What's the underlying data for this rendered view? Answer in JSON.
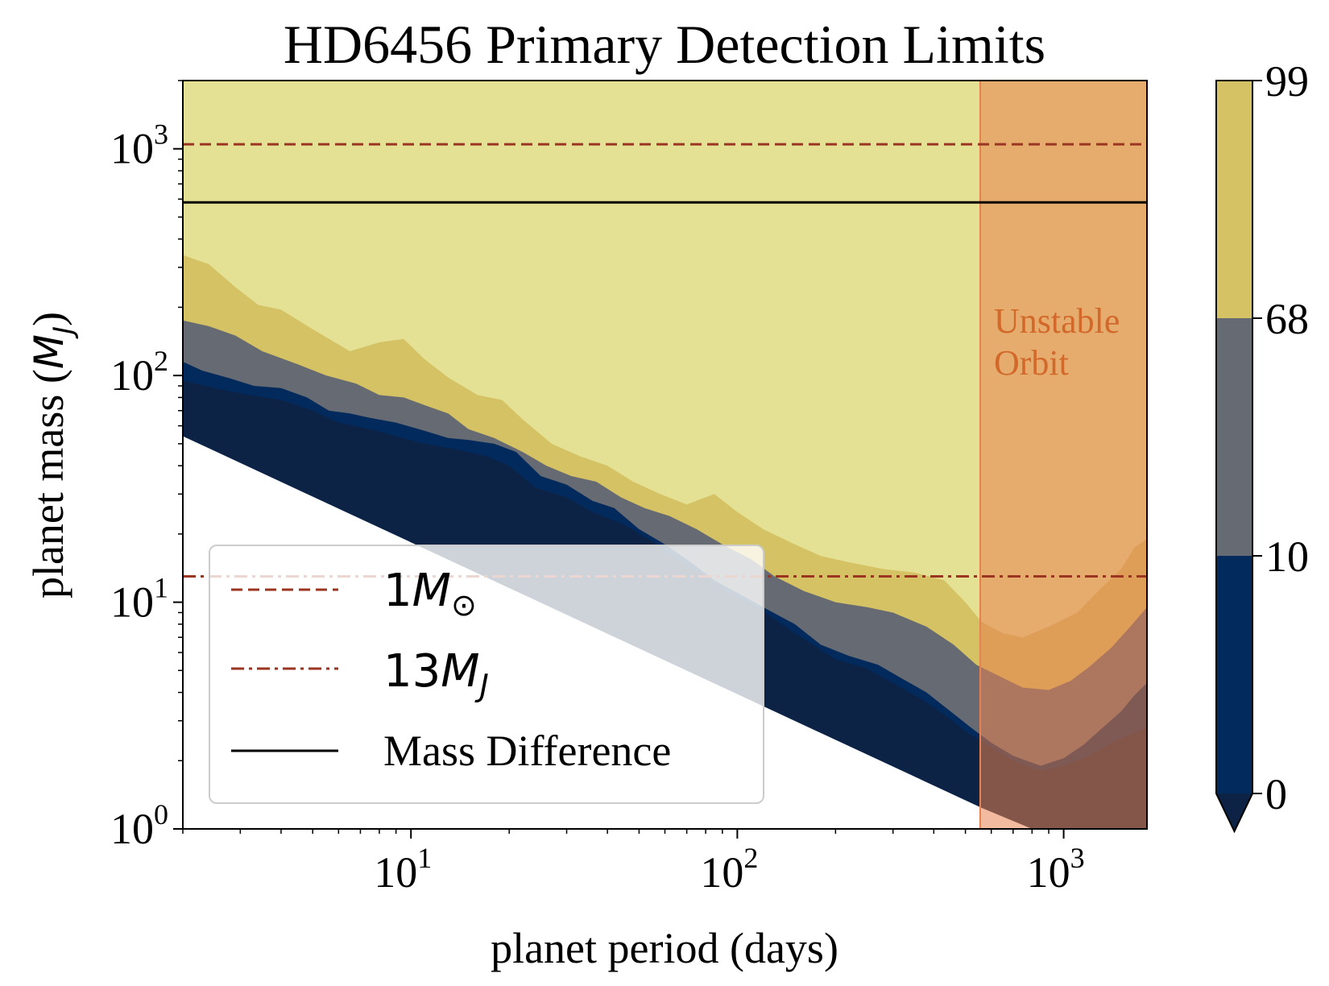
{
  "chart_data": {
    "type": "heatmap",
    "title": "HD6456 Primary Detection Limits",
    "xlabel": "planet period (days)",
    "ylabel_text": "planet mass (",
    "ylabel_symbol": "M",
    "ylabel_sub": "J",
    "ylabel_close": ")",
    "x_scale": "log",
    "y_scale": "log",
    "xlim": [
      2,
      1800
    ],
    "ylim": [
      1,
      2000
    ],
    "x_ticks": [
      {
        "value": 10,
        "base": "10",
        "exp": "1"
      },
      {
        "value": 100,
        "base": "10",
        "exp": "2"
      },
      {
        "value": 1000,
        "base": "10",
        "exp": "3"
      }
    ],
    "y_ticks": [
      {
        "value": 1,
        "base": "10",
        "exp": "0"
      },
      {
        "value": 10,
        "base": "10",
        "exp": "1"
      },
      {
        "value": 100,
        "base": "10",
        "exp": "2"
      },
      {
        "value": 1000,
        "base": "10",
        "exp": "3"
      }
    ],
    "colorbar": {
      "levels": [
        0,
        10,
        68,
        99
      ],
      "labels": [
        "0",
        "10",
        "68",
        "99"
      ],
      "colors": [
        "#022a5c",
        "#666a73",
        "#d4c264"
      ],
      "extend_color": "#0c2346"
    },
    "regions": {
      "fill_99": "#e4e194",
      "fill_68": "#d4c264",
      "fill_10": "#666a73",
      "fill_0": "#022a5c",
      "fill_dark": "#0c2346",
      "boundary_68_99": [
        [
          2,
          340
        ],
        [
          2.4,
          310
        ],
        [
          2.9,
          245
        ],
        [
          3.4,
          205
        ],
        [
          4,
          195
        ],
        [
          5,
          160
        ],
        [
          6.5,
          128
        ],
        [
          8,
          140
        ],
        [
          9.5,
          145
        ],
        [
          11,
          118
        ],
        [
          13,
          98
        ],
        [
          16,
          82
        ],
        [
          19,
          78
        ],
        [
          22,
          64
        ],
        [
          27,
          50
        ],
        [
          33,
          44
        ],
        [
          40,
          40
        ],
        [
          48,
          34
        ],
        [
          58,
          30
        ],
        [
          70,
          27
        ],
        [
          85,
          30
        ],
        [
          100,
          25
        ],
        [
          120,
          21
        ],
        [
          150,
          18
        ],
        [
          180,
          16
        ],
        [
          220,
          15
        ],
        [
          280,
          14
        ],
        [
          350,
          13.5
        ],
        [
          430,
          12.5
        ],
        [
          500,
          10
        ],
        [
          560,
          8.2
        ],
        [
          650,
          7.3
        ],
        [
          750,
          7
        ],
        [
          900,
          7.8
        ],
        [
          1100,
          9
        ],
        [
          1300,
          11.5
        ],
        [
          1500,
          14
        ],
        [
          1650,
          17.5
        ],
        [
          1800,
          19
        ]
      ],
      "boundary_10_68": [
        [
          2,
          175
        ],
        [
          2.4,
          165
        ],
        [
          2.9,
          150
        ],
        [
          3.5,
          128
        ],
        [
          4.5,
          112
        ],
        [
          5.5,
          100
        ],
        [
          6.8,
          92
        ],
        [
          8,
          82
        ],
        [
          9.5,
          80
        ],
        [
          11,
          74
        ],
        [
          13,
          68
        ],
        [
          15,
          58
        ],
        [
          18,
          53
        ],
        [
          22,
          46
        ],
        [
          26,
          40
        ],
        [
          31,
          36
        ],
        [
          37,
          34
        ],
        [
          44,
          29
        ],
        [
          52,
          26
        ],
        [
          62,
          24
        ],
        [
          75,
          21
        ],
        [
          90,
          18
        ],
        [
          110,
          15.5
        ],
        [
          130,
          13
        ],
        [
          160,
          11.2
        ],
        [
          200,
          10
        ],
        [
          250,
          9.5
        ],
        [
          300,
          9
        ],
        [
          380,
          7.8
        ],
        [
          460,
          6.5
        ],
        [
          540,
          5.3
        ],
        [
          620,
          4.8
        ],
        [
          750,
          4.2
        ],
        [
          900,
          4.1
        ],
        [
          1050,
          4.5
        ],
        [
          1200,
          5.2
        ],
        [
          1400,
          6.3
        ],
        [
          1600,
          7.8
        ],
        [
          1800,
          9.5
        ]
      ],
      "boundary_0_10": [
        [
          2,
          115
        ],
        [
          2.3,
          105
        ],
        [
          2.8,
          97
        ],
        [
          3.3,
          90
        ],
        [
          4,
          88
        ],
        [
          4.8,
          80
        ],
        [
          5.6,
          70
        ],
        [
          6.5,
          68
        ],
        [
          7.5,
          65
        ],
        [
          9,
          62
        ],
        [
          11,
          57
        ],
        [
          13,
          53
        ],
        [
          15,
          52
        ],
        [
          18,
          50
        ],
        [
          21,
          46
        ],
        [
          25,
          36
        ],
        [
          30,
          33
        ],
        [
          36,
          28
        ],
        [
          42,
          26
        ],
        [
          50,
          21
        ],
        [
          60,
          18
        ],
        [
          72,
          15
        ],
        [
          85,
          12.5
        ],
        [
          100,
          11
        ],
        [
          120,
          9.5
        ],
        [
          150,
          8
        ],
        [
          180,
          6.5
        ],
        [
          220,
          5.8
        ],
        [
          270,
          5.3
        ],
        [
          320,
          4.6
        ],
        [
          380,
          4
        ],
        [
          450,
          3.3
        ],
        [
          520,
          2.8
        ],
        [
          600,
          2.4
        ],
        [
          700,
          2.1
        ],
        [
          850,
          1.9
        ],
        [
          1000,
          2.05
        ],
        [
          1150,
          2.35
        ],
        [
          1300,
          2.75
        ],
        [
          1500,
          3.3
        ],
        [
          1650,
          3.9
        ],
        [
          1800,
          4.4
        ]
      ],
      "boundary_dark": [
        [
          2,
          95
        ],
        [
          2.6,
          87
        ],
        [
          3.2,
          82
        ],
        [
          4,
          78
        ],
        [
          5,
          70
        ],
        [
          6,
          62
        ],
        [
          7.5,
          58
        ],
        [
          9,
          54
        ],
        [
          11,
          50
        ],
        [
          14,
          47
        ],
        [
          17,
          44
        ],
        [
          20,
          40
        ],
        [
          24,
          32
        ],
        [
          30,
          29
        ],
        [
          36,
          25
        ],
        [
          45,
          22
        ],
        [
          55,
          18.5
        ],
        [
          65,
          15.5
        ],
        [
          80,
          13
        ],
        [
          95,
          11
        ],
        [
          115,
          9.5
        ],
        [
          140,
          7.8
        ],
        [
          170,
          6.5
        ],
        [
          200,
          5.6
        ],
        [
          250,
          5.1
        ],
        [
          300,
          4.4
        ],
        [
          360,
          3.8
        ],
        [
          430,
          3.2
        ],
        [
          500,
          2.7
        ],
        [
          600,
          2.3
        ],
        [
          700,
          2
        ],
        [
          850,
          1.8
        ],
        [
          1000,
          1.9
        ],
        [
          1200,
          2.1
        ],
        [
          1400,
          2.4
        ],
        [
          1800,
          2.8
        ]
      ],
      "lower_edge": [
        [
          2,
          54
        ],
        [
          560,
          1.24
        ],
        [
          800,
          1
        ]
      ]
    },
    "unstable_region": {
      "x_start": 555,
      "color": "#e8814f",
      "opacity": 0.55,
      "label_line1": "Unstable",
      "label_line2": "Orbit",
      "label_color": "#d2692a"
    },
    "lines": [
      {
        "name": "1M_sun",
        "y": 1047,
        "style": "dashed",
        "color": "#9b3522"
      },
      {
        "name": "13M_J",
        "y": 13,
        "style": "dashdot",
        "color": "#9b3522"
      },
      {
        "name": "Mass Difference",
        "y": 580,
        "style": "solid",
        "color": "#000000"
      }
    ],
    "legend": {
      "position": "lower-left",
      "entries": [
        {
          "label_main": "1",
          "label_symbol": "M",
          "label_sub": "⊙",
          "style": "dashed",
          "color": "#9b3522"
        },
        {
          "label_main": "13",
          "label_symbol": "M",
          "label_sub": "J",
          "style": "dashdot",
          "color": "#9b3522"
        },
        {
          "label_text": "Mass Difference",
          "style": "solid",
          "color": "#000000"
        }
      ]
    }
  }
}
